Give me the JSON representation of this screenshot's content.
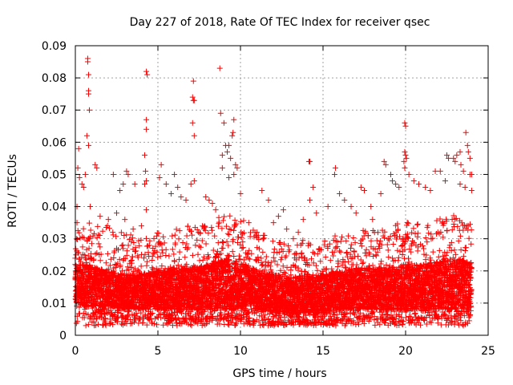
{
  "chart_data": {
    "type": "scatter",
    "title": "Day 227 of 2018, Rate Of TEC Index for receiver qsec",
    "xlabel": "GPS time / hours",
    "ylabel": "ROTI / TECUs",
    "xlim": [
      0,
      25
    ],
    "ylim": [
      0,
      0.09
    ],
    "xticks": [
      "0",
      "5",
      "10",
      "15",
      "20",
      "25"
    ],
    "yticks": [
      "0",
      "0.01",
      "0.02",
      "0.03",
      "0.04",
      "0.05",
      "0.06",
      "0.07",
      "0.08",
      "0.09"
    ],
    "grid": true,
    "marker": "+",
    "color": "#ff0000",
    "series": [
      {
        "points": [
          [
            0.75,
            0.086
          ],
          [
            0.75,
            0.085
          ],
          [
            0.8,
            0.081
          ],
          [
            0.8,
            0.076
          ],
          [
            0.8,
            0.075
          ],
          [
            0.85,
            0.07
          ],
          [
            0.7,
            0.062
          ],
          [
            0.8,
            0.059
          ],
          [
            0.2,
            0.058
          ],
          [
            0.15,
            0.052
          ],
          [
            0.25,
            0.049
          ],
          [
            0.6,
            0.05
          ],
          [
            1.2,
            0.053
          ],
          [
            1.3,
            0.052
          ],
          [
            0.4,
            0.047
          ],
          [
            0.1,
            0.04
          ],
          [
            0.5,
            0.046
          ],
          [
            4.3,
            0.082
          ],
          [
            4.35,
            0.081
          ],
          [
            4.3,
            0.067
          ],
          [
            4.3,
            0.064
          ],
          [
            4.2,
            0.056
          ],
          [
            4.25,
            0.051
          ],
          [
            4.3,
            0.048
          ],
          [
            4.2,
            0.047
          ],
          [
            4.3,
            0.039
          ],
          [
            7.15,
            0.079
          ],
          [
            7.1,
            0.074
          ],
          [
            7.15,
            0.073
          ],
          [
            7.2,
            0.073
          ],
          [
            7.1,
            0.066
          ],
          [
            7.2,
            0.062
          ],
          [
            7.0,
            0.047
          ],
          [
            7.2,
            0.048
          ],
          [
            8.75,
            0.083
          ],
          [
            8.8,
            0.069
          ],
          [
            9.0,
            0.066
          ],
          [
            9.6,
            0.067
          ],
          [
            9.55,
            0.063
          ],
          [
            9.5,
            0.062
          ],
          [
            9.3,
            0.059
          ],
          [
            9.1,
            0.059
          ],
          [
            9.2,
            0.057
          ],
          [
            8.9,
            0.056
          ],
          [
            9.4,
            0.055
          ],
          [
            9.7,
            0.053
          ],
          [
            9.8,
            0.052
          ],
          [
            9.6,
            0.05
          ],
          [
            8.9,
            0.052
          ],
          [
            9.3,
            0.049
          ],
          [
            10.0,
            0.044
          ],
          [
            3.1,
            0.051
          ],
          [
            3.2,
            0.05
          ],
          [
            2.3,
            0.05
          ],
          [
            2.9,
            0.047
          ],
          [
            2.7,
            0.045
          ],
          [
            3.6,
            0.047
          ],
          [
            5.2,
            0.053
          ],
          [
            5.1,
            0.049
          ],
          [
            5.5,
            0.047
          ],
          [
            6.0,
            0.05
          ],
          [
            6.2,
            0.046
          ],
          [
            5.8,
            0.044
          ],
          [
            6.4,
            0.043
          ],
          [
            6.7,
            0.042
          ],
          [
            7.9,
            0.043
          ],
          [
            8.1,
            0.042
          ],
          [
            8.5,
            0.039
          ],
          [
            8.3,
            0.041
          ],
          [
            11.3,
            0.045
          ],
          [
            11.7,
            0.042
          ],
          [
            12.0,
            0.035
          ],
          [
            12.3,
            0.037
          ],
          [
            12.6,
            0.039
          ],
          [
            13.5,
            0.032
          ],
          [
            13.8,
            0.036
          ],
          [
            14.15,
            0.054
          ],
          [
            14.2,
            0.054
          ],
          [
            14.4,
            0.046
          ],
          [
            14.2,
            0.042
          ],
          [
            14.6,
            0.038
          ],
          [
            15.3,
            0.04
          ],
          [
            15.7,
            0.05
          ],
          [
            15.75,
            0.052
          ],
          [
            16.0,
            0.044
          ],
          [
            16.3,
            0.042
          ],
          [
            16.7,
            0.04
          ],
          [
            17.0,
            0.038
          ],
          [
            17.3,
            0.046
          ],
          [
            17.5,
            0.045
          ],
          [
            17.9,
            0.04
          ],
          [
            18.5,
            0.044
          ],
          [
            18.7,
            0.054
          ],
          [
            18.8,
            0.053
          ],
          [
            19.1,
            0.05
          ],
          [
            19.2,
            0.048
          ],
          [
            19.4,
            0.047
          ],
          [
            19.6,
            0.046
          ],
          [
            19.95,
            0.066
          ],
          [
            20.0,
            0.065
          ],
          [
            19.95,
            0.057
          ],
          [
            20.0,
            0.056
          ],
          [
            20.05,
            0.055
          ],
          [
            19.9,
            0.054
          ],
          [
            19.95,
            0.052
          ],
          [
            20.2,
            0.05
          ],
          [
            20.5,
            0.048
          ],
          [
            20.8,
            0.047
          ],
          [
            21.2,
            0.046
          ],
          [
            21.5,
            0.045
          ],
          [
            21.8,
            0.051
          ],
          [
            22.1,
            0.051
          ],
          [
            22.4,
            0.048
          ],
          [
            22.5,
            0.056
          ],
          [
            22.6,
            0.055
          ],
          [
            22.9,
            0.055
          ],
          [
            23.0,
            0.054
          ],
          [
            23.1,
            0.056
          ],
          [
            23.3,
            0.057
          ],
          [
            23.35,
            0.053
          ],
          [
            23.5,
            0.051
          ],
          [
            23.65,
            0.063
          ],
          [
            23.75,
            0.059
          ],
          [
            23.8,
            0.057
          ],
          [
            23.9,
            0.055
          ],
          [
            23.9,
            0.05
          ],
          [
            24.0,
            0.05
          ],
          [
            24.0,
            0.045
          ],
          [
            23.6,
            0.046
          ],
          [
            23.3,
            0.047
          ],
          [
            0.1,
            0.035
          ],
          [
            0.9,
            0.04
          ],
          [
            1.5,
            0.037
          ],
          [
            2.0,
            0.036
          ],
          [
            2.5,
            0.038
          ],
          [
            3.0,
            0.036
          ],
          [
            3.5,
            0.033
          ],
          [
            4.0,
            0.034
          ],
          [
            10.5,
            0.035
          ],
          [
            11.0,
            0.032
          ],
          [
            12.8,
            0.033
          ],
          [
            13.2,
            0.03
          ],
          [
            18.0,
            0.036
          ]
        ]
      }
    ],
    "band": {
      "note": "dense cloud of points concentrated between ~0.005 and ~0.035 over 0-24 h",
      "min": 0.003,
      "hours": [
        0,
        1,
        2,
        3,
        4,
        5,
        6,
        7,
        8,
        9,
        10,
        11,
        12,
        13,
        14,
        15,
        16,
        17,
        18,
        19,
        20,
        21,
        22,
        23,
        24
      ],
      "upper": [
        0.032,
        0.036,
        0.034,
        0.032,
        0.031,
        0.032,
        0.034,
        0.034,
        0.035,
        0.038,
        0.037,
        0.032,
        0.03,
        0.028,
        0.03,
        0.03,
        0.032,
        0.033,
        0.033,
        0.034,
        0.036,
        0.035,
        0.036,
        0.038,
        0.036
      ],
      "lower": [
        0.006,
        0.005,
        0.005,
        0.005,
        0.005,
        0.005,
        0.005,
        0.005,
        0.005,
        0.005,
        0.005,
        0.004,
        0.004,
        0.004,
        0.004,
        0.004,
        0.005,
        0.005,
        0.005,
        0.005,
        0.005,
        0.005,
        0.005,
        0.005,
        0.005
      ],
      "core_upper": [
        0.022,
        0.022,
        0.02,
        0.019,
        0.019,
        0.02,
        0.021,
        0.021,
        0.022,
        0.024,
        0.023,
        0.02,
        0.019,
        0.018,
        0.019,
        0.019,
        0.02,
        0.021,
        0.021,
        0.021,
        0.022,
        0.022,
        0.023,
        0.024,
        0.023
      ],
      "core_lower": [
        0.009,
        0.009,
        0.009,
        0.008,
        0.008,
        0.008,
        0.008,
        0.008,
        0.008,
        0.008,
        0.008,
        0.008,
        0.007,
        0.007,
        0.007,
        0.007,
        0.008,
        0.008,
        0.008,
        0.008,
        0.008,
        0.008,
        0.008,
        0.008,
        0.008
      ]
    }
  }
}
